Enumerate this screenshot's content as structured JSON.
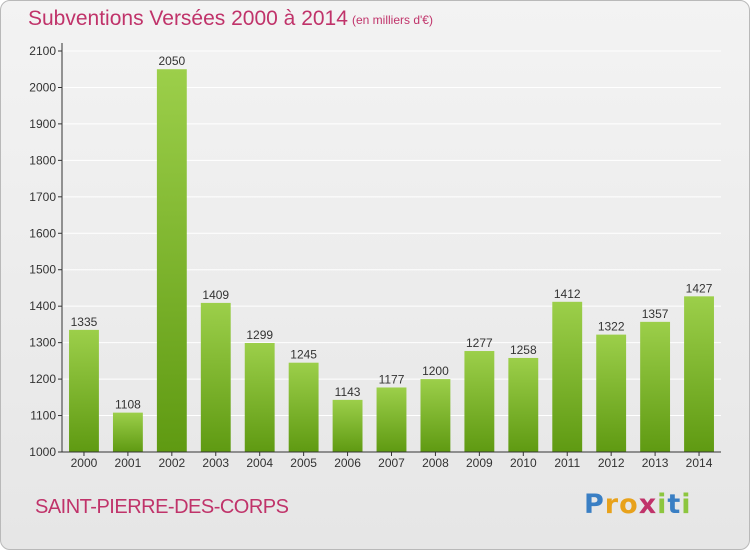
{
  "header": {
    "title": "Subventions Versées 2000 à 2014",
    "subtitle": "(en milliers d'€)"
  },
  "footer": {
    "commune": "SAINT-PIERRE-DES-CORPS",
    "logo_letters": [
      "P",
      "r",
      "o",
      "x",
      "i",
      "t",
      "i"
    ],
    "logo_colors": [
      "#3a7fc4",
      "#e8a21b",
      "#e8a21b",
      "#c0336a",
      "#8dc63f",
      "#3a7fc4",
      "#8dc63f"
    ]
  },
  "colors": {
    "accent": "#c0336a",
    "bar_light": "#9ccf4a",
    "bar_dark": "#5f9a12",
    "grid": "#ffffff",
    "axis": "#333333"
  },
  "chart_data": {
    "type": "bar",
    "categories": [
      "2000",
      "2001",
      "2002",
      "2003",
      "2004",
      "2005",
      "2006",
      "2007",
      "2008",
      "2009",
      "2010",
      "2011",
      "2012",
      "2013",
      "2014"
    ],
    "values": [
      1335,
      1108,
      2050,
      1409,
      1299,
      1245,
      1143,
      1177,
      1200,
      1277,
      1258,
      1412,
      1322,
      1357,
      1427
    ],
    "data_labels": [
      "1335",
      "1108",
      "2050",
      "1409",
      "1299",
      "1245",
      "1143",
      "1177",
      "1200",
      "1277",
      "1258",
      "1412",
      "1322",
      "1357",
      "1427"
    ],
    "y_ticks": [
      1000,
      1100,
      1200,
      1300,
      1400,
      1500,
      1600,
      1700,
      1800,
      1900,
      2000,
      2100
    ],
    "ylim": [
      1000,
      2100
    ],
    "title": "Subventions Versées 2000 à 2014",
    "xlabel": "",
    "ylabel": "",
    "grid": true,
    "legend": "none"
  }
}
